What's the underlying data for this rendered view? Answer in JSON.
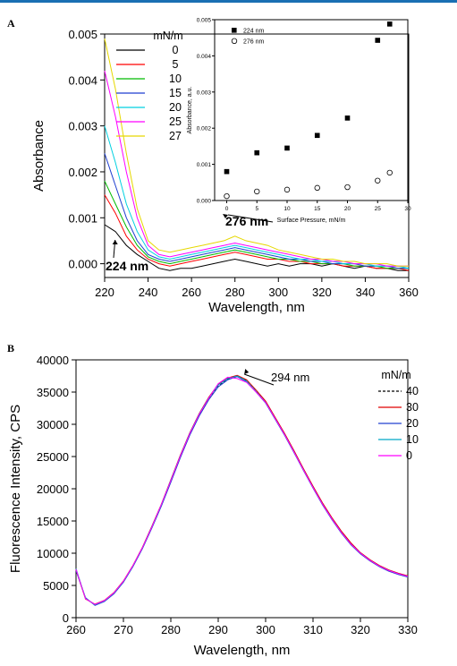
{
  "chart_data": [
    {
      "panel": "A",
      "type": "line",
      "xlabel": "Wavelength, nm",
      "ylabel": "Absorbance",
      "xlim": [
        220,
        360
      ],
      "ylim": [
        -0.0003,
        0.005
      ],
      "x_ticks": [
        220,
        240,
        260,
        280,
        300,
        320,
        340,
        360
      ],
      "y_ticks": [
        0.0,
        0.001,
        0.002,
        0.003,
        0.004,
        0.005
      ],
      "y_tick_labels": [
        "0.000",
        "0.001",
        "0.002",
        "0.003",
        "0.004",
        "0.005"
      ],
      "legend_title": "mN/m",
      "legend_placement": "top-left-inside",
      "x": [
        220,
        225,
        230,
        235,
        240,
        245,
        250,
        255,
        260,
        265,
        270,
        275,
        280,
        285,
        290,
        295,
        300,
        305,
        310,
        315,
        320,
        325,
        330,
        335,
        340,
        345,
        350,
        355,
        360
      ],
      "series": [
        {
          "name": "0",
          "color": "#000000",
          "values": [
            0.00085,
            0.0007,
            0.0004,
            0.0002,
            5e-05,
            -0.0001,
            -0.00015,
            -0.0001,
            -0.0001,
            -5e-05,
            0.0,
            5e-05,
            0.0001,
            5e-05,
            0.0,
            -5e-05,
            0.0,
            -5e-05,
            0.0,
            0.0,
            -5e-05,
            0.0,
            -5e-05,
            -0.0001,
            -5e-05,
            -0.0001,
            -0.0001,
            -0.00015,
            -0.00015
          ]
        },
        {
          "name": "5",
          "color": "#ff0000",
          "values": [
            0.0015,
            0.0011,
            0.0006,
            0.0003,
            0.0001,
            0.0,
            -5e-05,
            0.0,
            5e-05,
            0.0001,
            0.00015,
            0.0002,
            0.00025,
            0.0002,
            0.00015,
            0.0001,
            0.0001,
            5e-05,
            5e-05,
            0.0,
            0.0,
            0.0,
            -5e-05,
            -5e-05,
            -5e-05,
            -0.0001,
            -0.0001,
            -0.0001,
            -0.00015
          ]
        },
        {
          "name": "10",
          "color": "#00bb00",
          "values": [
            0.0018,
            0.0013,
            0.0008,
            0.0004,
            0.00015,
            5e-05,
            0.0,
            5e-05,
            0.0001,
            0.00015,
            0.0002,
            0.00025,
            0.0003,
            0.00025,
            0.0002,
            0.00015,
            0.0001,
            0.0001,
            5e-05,
            5e-05,
            0.0,
            0.0,
            0.0,
            -5e-05,
            -5e-05,
            -5e-05,
            -0.0001,
            -0.0001,
            -0.0001
          ]
        },
        {
          "name": "15",
          "color": "#1f3fd0",
          "values": [
            0.0024,
            0.0017,
            0.001,
            0.0005,
            0.0002,
            0.0001,
            5e-05,
            0.0001,
            0.00015,
            0.0002,
            0.00025,
            0.0003,
            0.00035,
            0.0003,
            0.00025,
            0.0002,
            0.00015,
            0.0001,
            0.0001,
            5e-05,
            5e-05,
            0.0,
            0.0,
            0.0,
            -5e-05,
            -5e-05,
            -5e-05,
            -0.0001,
            -0.0001
          ]
        },
        {
          "name": "20",
          "color": "#00d0e0",
          "values": [
            0.003,
            0.0022,
            0.0013,
            0.0007,
            0.0003,
            0.00015,
            0.0001,
            0.00015,
            0.0002,
            0.00025,
            0.0003,
            0.00035,
            0.0004,
            0.00035,
            0.0003,
            0.00025,
            0.0002,
            0.00015,
            0.0001,
            0.0001,
            5e-05,
            5e-05,
            0.0,
            0.0,
            0.0,
            -5e-05,
            -5e-05,
            -5e-05,
            -0.0001
          ]
        },
        {
          "name": "25",
          "color": "#ff00ff",
          "values": [
            0.0042,
            0.0032,
            0.002,
            0.001,
            0.0004,
            0.0002,
            0.00015,
            0.0002,
            0.00025,
            0.0003,
            0.00035,
            0.0004,
            0.00045,
            0.0004,
            0.00035,
            0.0003,
            0.00025,
            0.0002,
            0.00015,
            0.0001,
            0.0001,
            5e-05,
            5e-05,
            0.0,
            0.0,
            0.0,
            -5e-05,
            -5e-05,
            -5e-05
          ]
        },
        {
          "name": "27",
          "color": "#e6d800",
          "values": [
            0.0049,
            0.0038,
            0.0024,
            0.0012,
            0.0005,
            0.0003,
            0.00025,
            0.0003,
            0.00035,
            0.0004,
            0.00045,
            0.0005,
            0.0006,
            0.0005,
            0.00045,
            0.0004,
            0.0003,
            0.00025,
            0.0002,
            0.00015,
            0.0001,
            0.0001,
            5e-05,
            5e-05,
            0.0,
            0.0,
            0.0,
            -5e-05,
            -5e-05
          ]
        }
      ],
      "annotations": [
        {
          "text": "276 nm",
          "x": 276
        },
        {
          "text": "224 nm",
          "x": 224
        }
      ],
      "inset": {
        "type": "scatter",
        "xlabel": "Surface Pressure, mN/m",
        "ylabel": "Absorbance, a.u.",
        "xlim": [
          -2,
          30
        ],
        "ylim": [
          0,
          0.005
        ],
        "x_ticks": [
          0,
          5,
          10,
          15,
          20,
          25,
          30
        ],
        "y_ticks": [
          0.0,
          0.001,
          0.002,
          0.003,
          0.004,
          0.005
        ],
        "y_tick_labels": [
          "0.000",
          "0.001",
          "0.002",
          "0.003",
          "0.004",
          "0.005"
        ],
        "legend_placement": "top-left",
        "series": [
          {
            "name": "224 nm",
            "marker": "filled-square",
            "x": [
              0,
              5,
              10,
              15,
              20,
              25,
              27
            ],
            "values": [
              0.0008,
              0.00132,
              0.00145,
              0.0018,
              0.00228,
              0.00443,
              0.00488
            ]
          },
          {
            "name": "276 nm",
            "marker": "open-circle",
            "x": [
              0,
              5,
              10,
              15,
              20,
              25,
              27
            ],
            "values": [
              0.00012,
              0.00025,
              0.0003,
              0.00035,
              0.00037,
              0.00055,
              0.00077
            ]
          }
        ]
      }
    },
    {
      "panel": "B",
      "type": "line",
      "xlabel": "Wavelength, nm",
      "ylabel": "Fluorescence Intensity, CPS",
      "xlim": [
        260,
        330
      ],
      "ylim": [
        0,
        40000
      ],
      "x_ticks": [
        260,
        270,
        280,
        290,
        300,
        310,
        320,
        330
      ],
      "y_ticks": [
        0,
        5000,
        10000,
        15000,
        20000,
        25000,
        30000,
        35000,
        40000
      ],
      "legend_title": "mN/m",
      "legend_placement": "top-right",
      "x": [
        260,
        262,
        264,
        266,
        268,
        270,
        272,
        274,
        276,
        278,
        280,
        282,
        284,
        286,
        288,
        290,
        292,
        294,
        296,
        298,
        300,
        302,
        304,
        306,
        308,
        310,
        312,
        314,
        316,
        318,
        320,
        322,
        324,
        326,
        328,
        330
      ],
      "series": [
        {
          "name": "40",
          "color": "#000000",
          "dashed": true,
          "values": [
            7500,
            3000,
            2000,
            2600,
            3800,
            5600,
            8000,
            10800,
            14000,
            17500,
            21200,
            25000,
            28500,
            31500,
            34000,
            36000,
            37000,
            37500,
            36800,
            35200,
            33500,
            31000,
            28500,
            25800,
            23000,
            20300,
            17700,
            15400,
            13300,
            11500,
            10000,
            8900,
            8000,
            7300,
            6800,
            6400
          ]
        },
        {
          "name": "30",
          "color": "#e00000",
          "dashed": false,
          "values": [
            7400,
            2900,
            2100,
            2700,
            3900,
            5700,
            8100,
            10900,
            14200,
            17600,
            21400,
            25200,
            28700,
            31700,
            34200,
            36200,
            37200,
            37600,
            36900,
            35300,
            33600,
            31100,
            28600,
            25900,
            23100,
            20400,
            17800,
            15500,
            13400,
            11600,
            10100,
            9000,
            8100,
            7400,
            6900,
            6500
          ]
        },
        {
          "name": "20",
          "color": "#2040d0",
          "dashed": false,
          "values": [
            7300,
            3100,
            1900,
            2500,
            3700,
            5500,
            7900,
            10700,
            13900,
            17300,
            21000,
            24800,
            28300,
            31300,
            33800,
            35800,
            36900,
            37400,
            36600,
            35000,
            33300,
            30800,
            28300,
            25600,
            22800,
            20100,
            17500,
            15200,
            13100,
            11300,
            9900,
            8800,
            7900,
            7200,
            6700,
            6300
          ]
        },
        {
          "name": "10",
          "color": "#00a8c8",
          "dashed": false,
          "values": [
            7600,
            3000,
            2000,
            2600,
            3800,
            5600,
            8000,
            10800,
            14100,
            17500,
            21300,
            25100,
            28600,
            31600,
            34100,
            36100,
            37100,
            37500,
            36700,
            35100,
            33400,
            30900,
            28400,
            25700,
            22900,
            20200,
            17600,
            15300,
            13200,
            11400,
            10000,
            8900,
            8000,
            7300,
            6800,
            6400
          ]
        },
        {
          "name": "0",
          "color": "#ff00ff",
          "dashed": false,
          "values": [
            7500,
            2950,
            2050,
            2650,
            3850,
            5650,
            8050,
            10850,
            14050,
            17550,
            21250,
            25050,
            28550,
            31550,
            34050,
            36300,
            37300,
            37100,
            36500,
            35000,
            33400,
            30900,
            28400,
            25700,
            22900,
            20200,
            17600,
            15300,
            13200,
            11400,
            10000,
            8900,
            8000,
            7300,
            6800,
            6400
          ]
        }
      ],
      "annotations": [
        {
          "text": "294 nm",
          "x": 294
        }
      ]
    }
  ]
}
